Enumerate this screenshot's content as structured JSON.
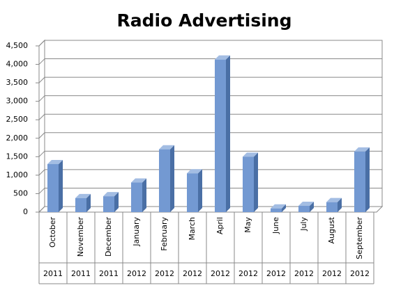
{
  "chart_data": {
    "type": "bar3d",
    "title": "Radio Advertising",
    "categories": [
      "October",
      "November",
      "December",
      "January",
      "February",
      "March",
      "April",
      "May",
      "June",
      "July",
      "August",
      "September"
    ],
    "years": [
      "2011",
      "2011",
      "2011",
      "2012",
      "2012",
      "2012",
      "2012",
      "2012",
      "2012",
      "2012",
      "2012",
      "2012"
    ],
    "values": [
      1300,
      380,
      430,
      800,
      1700,
      1050,
      4130,
      1500,
      100,
      170,
      270,
      1640
    ],
    "color": "#7399d2",
    "ylim": [
      0,
      4500
    ],
    "yticks": [
      0,
      500,
      {
        "value": 1000,
        "label": "1,000"
      },
      {
        "value": 1500,
        "label": "1,500"
      },
      {
        "value": 2000,
        "label": "2,000"
      },
      {
        "value": 2500,
        "label": "2,500"
      },
      {
        "value": 3000,
        "label": "3,000"
      },
      {
        "value": 3500,
        "label": "3,500"
      },
      {
        "value": 4000,
        "label": "4,000"
      },
      {
        "value": 4500,
        "label": "4,500"
      }
    ],
    "grid": true
  }
}
